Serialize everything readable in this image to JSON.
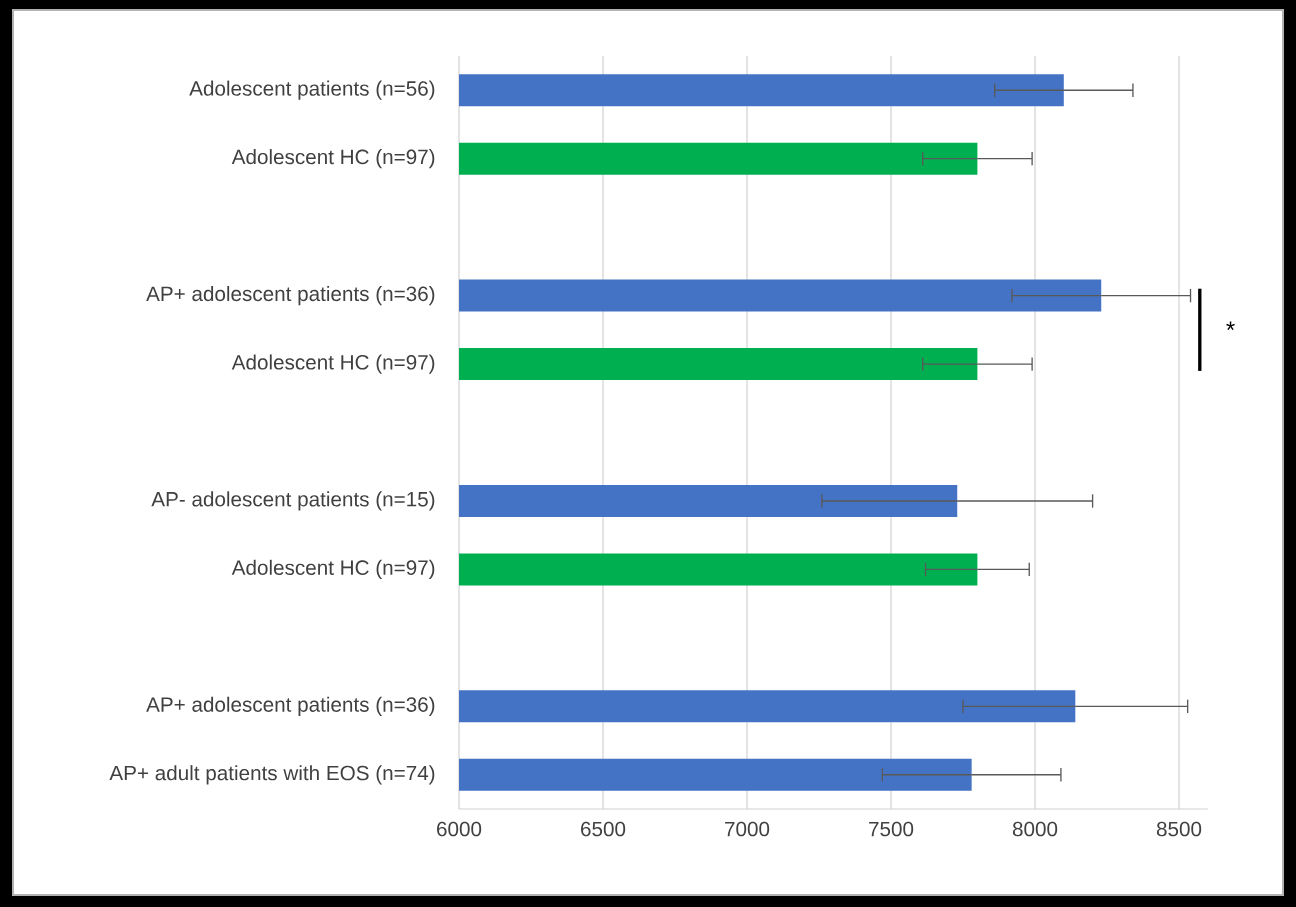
{
  "chart_data": {
    "type": "bar",
    "orientation": "horizontal",
    "categories": [
      "Adolescent patients (n=56)",
      "Adolescent HC (n=97)",
      null,
      "AP+ adolescent patients (n=36)",
      "Adolescent HC (n=97)",
      null,
      "AP- adolescent patients (n=15)",
      "Adolescent HC (n=97)",
      null,
      "AP+ adolescent patients (n=36)",
      "AP+ adult patients with EOS (n=74)"
    ],
    "values": [
      8100,
      7800,
      null,
      8230,
      7800,
      null,
      7730,
      7800,
      null,
      8140,
      7780
    ],
    "errors": [
      240,
      190,
      null,
      310,
      190,
      null,
      470,
      180,
      null,
      390,
      310
    ],
    "colors": [
      "#4472c4",
      "#00b050",
      null,
      "#4472c4",
      "#00b050",
      null,
      "#4472c4",
      "#00b050",
      null,
      "#4472c4",
      "#4472c4"
    ],
    "xlim": [
      6000,
      8600
    ],
    "xticks": [
      6000,
      6500,
      7000,
      7500,
      8000,
      8500
    ],
    "grid": "x",
    "annotations": [
      "*"
    ]
  }
}
